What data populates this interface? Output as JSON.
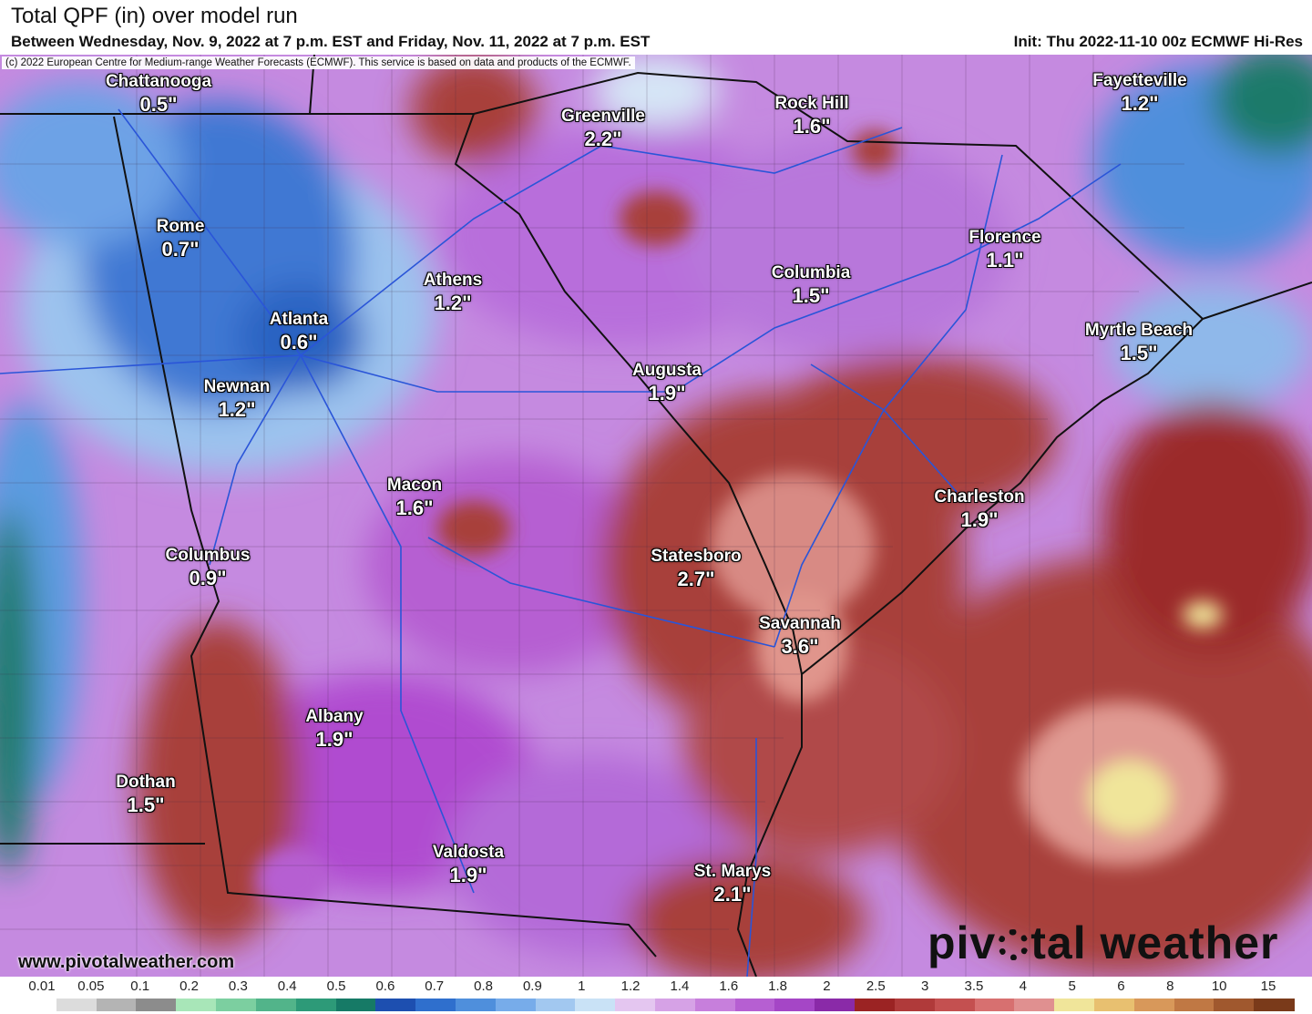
{
  "header": {
    "title": "Total QPF (in) over model run",
    "subtitle": "Between Wednesday, Nov. 9, 2022 at 7 p.m. EST and Friday, Nov. 11, 2022 at 7 p.m. EST",
    "init": "Init: Thu 2022-11-10 00z ECMWF Hi-Res"
  },
  "copyright": "(c) 2022 European Centre for Medium-range Weather Forecasts (ECMWF). This service is based on data and products of the ECMWF.",
  "cities": [
    {
      "name": "Chattanooga",
      "value": "0.5\""
    },
    {
      "name": "Greenville",
      "value": "2.2\""
    },
    {
      "name": "Rock Hill",
      "value": "1.6\""
    },
    {
      "name": "Fayetteville",
      "value": "1.2\""
    },
    {
      "name": "Rome",
      "value": "0.7\""
    },
    {
      "name": "Athens",
      "value": "1.2\""
    },
    {
      "name": "Columbia",
      "value": "1.5\""
    },
    {
      "name": "Florence",
      "value": "1.1\""
    },
    {
      "name": "Atlanta",
      "value": "0.6\""
    },
    {
      "name": "Myrtle Beach",
      "value": "1.5\""
    },
    {
      "name": "Newnan",
      "value": "1.2\""
    },
    {
      "name": "Augusta",
      "value": "1.9\""
    },
    {
      "name": "Macon",
      "value": "1.6\""
    },
    {
      "name": "Charleston",
      "value": "1.9\""
    },
    {
      "name": "Columbus",
      "value": "0.9\""
    },
    {
      "name": "Statesboro",
      "value": "2.7\""
    },
    {
      "name": "Savannah",
      "value": "3.6\""
    },
    {
      "name": "Albany",
      "value": "1.9\""
    },
    {
      "name": "Dothan",
      "value": "1.5\""
    },
    {
      "name": "Valdosta",
      "value": "1.9\""
    },
    {
      "name": "St. Marys",
      "value": "2.1\""
    }
  ],
  "footer": {
    "website": "www.pivotalweather.com",
    "brand_left": "piv",
    "brand_right": "tal weather"
  },
  "legend": {
    "ticks": [
      "0.01",
      "0.05",
      "0.1",
      "0.2",
      "0.3",
      "0.4",
      "0.5",
      "0.6",
      "0.7",
      "0.8",
      "0.9",
      "1",
      "1.2",
      "1.4",
      "1.6",
      "1.8",
      "2",
      "2.5",
      "3",
      "3.5",
      "4",
      "5",
      "6",
      "8",
      "10",
      "15"
    ],
    "colors": [
      "#ffffff",
      "#dcdcdc",
      "#b4b4b4",
      "#8c8c8c",
      "#a8e6b8",
      "#7ccfa0",
      "#52b48a",
      "#2d9a78",
      "#167a66",
      "#1d4fb0",
      "#2f6fcd",
      "#4f8fdc",
      "#77acea",
      "#a2c8f0",
      "#c9e2f6",
      "#e4c6f0",
      "#d6a2e6",
      "#c77fdc",
      "#b65fd2",
      "#a546c6",
      "#8a2aa8",
      "#9b2323",
      "#b03a3a",
      "#c45050",
      "#d77070",
      "#e09090",
      "#f0e59a",
      "#e8c070",
      "#d8985a",
      "#c07844",
      "#a0582e",
      "#7a3a1a"
    ]
  },
  "colors": {
    "high_precip": "#a8403a",
    "mid_precip": "#b46ad8",
    "low_precip": "#2f6fcd",
    "border": "#111111",
    "interstate": "#2a55d8"
  }
}
